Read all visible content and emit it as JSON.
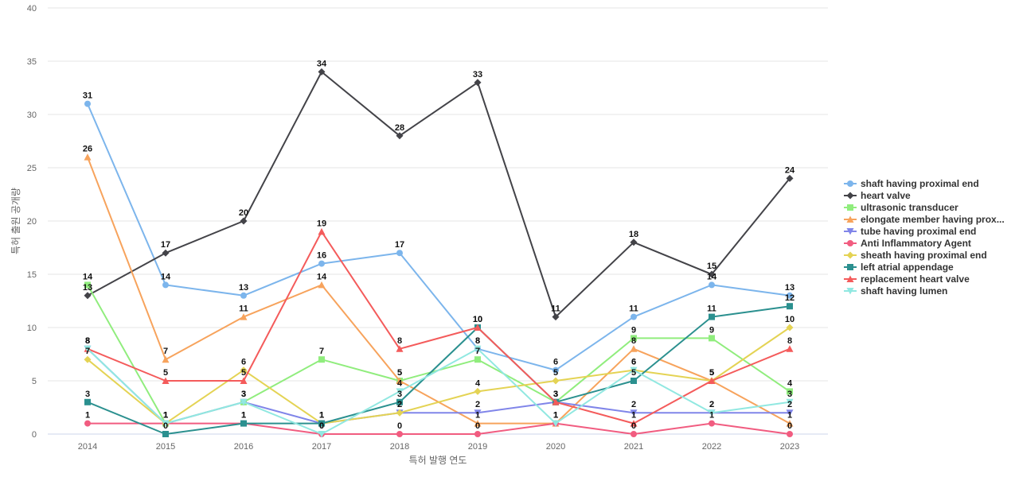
{
  "chart_data": {
    "type": "line",
    "title": "",
    "xlabel": "특허 발행 연도",
    "ylabel": "특허 출원 공개량",
    "x": [
      "2014",
      "2015",
      "2016",
      "2017",
      "2018",
      "2019",
      "2020",
      "2021",
      "2022",
      "2023"
    ],
    "ylim": [
      0,
      40
    ],
    "yticks": [
      0,
      5,
      10,
      15,
      20,
      25,
      30,
      35,
      40
    ],
    "grid": "horizontal",
    "legend_position": "right",
    "series": [
      {
        "name": "shaft having proximal end",
        "color": "#7cb5ec",
        "marker": "circle",
        "values": [
          31,
          14,
          13,
          16,
          17,
          8,
          6,
          11,
          14,
          13
        ]
      },
      {
        "name": "heart valve",
        "color": "#434348",
        "marker": "diamond",
        "values": [
          13,
          17,
          20,
          34,
          28,
          33,
          11,
          18,
          15,
          24
        ]
      },
      {
        "name": "ultrasonic transducer",
        "color": "#90ed7d",
        "marker": "square",
        "values": [
          14,
          1,
          3,
          7,
          5,
          7,
          3,
          9,
          9,
          4
        ]
      },
      {
        "name": "elongate member having prox...",
        "color": "#f7a35c",
        "marker": "triangle",
        "values": [
          26,
          7,
          11,
          14,
          5,
          1,
          1,
          8,
          5,
          1
        ]
      },
      {
        "name": "tube having proximal end",
        "color": "#8085e9",
        "marker": "triangle-down",
        "values": [
          8,
          1,
          3,
          1,
          2,
          2,
          3,
          2,
          2,
          2
        ]
      },
      {
        "name": "Anti Inflammatory Agent",
        "color": "#f15c80",
        "marker": "circle",
        "values": [
          1,
          1,
          1,
          0,
          0,
          0,
          1,
          0,
          1,
          0
        ]
      },
      {
        "name": "sheath having proximal end",
        "color": "#e4d354",
        "marker": "diamond",
        "values": [
          7,
          1,
          6,
          1,
          2,
          4,
          5,
          6,
          5,
          10
        ]
      },
      {
        "name": "left atrial appendage",
        "color": "#2b908f",
        "marker": "square",
        "values": [
          3,
          0,
          1,
          1,
          3,
          10,
          3,
          5,
          11,
          12
        ]
      },
      {
        "name": "replacement heart valve",
        "color": "#f45b5b",
        "marker": "triangle",
        "values": [
          8,
          5,
          5,
          19,
          8,
          10,
          3,
          1,
          5,
          8
        ]
      },
      {
        "name": "shaft having lumen",
        "color": "#91e8e1",
        "marker": "triangle-down",
        "values": [
          8,
          1,
          3,
          0,
          4,
          8,
          1,
          6,
          2,
          3
        ]
      }
    ]
  }
}
